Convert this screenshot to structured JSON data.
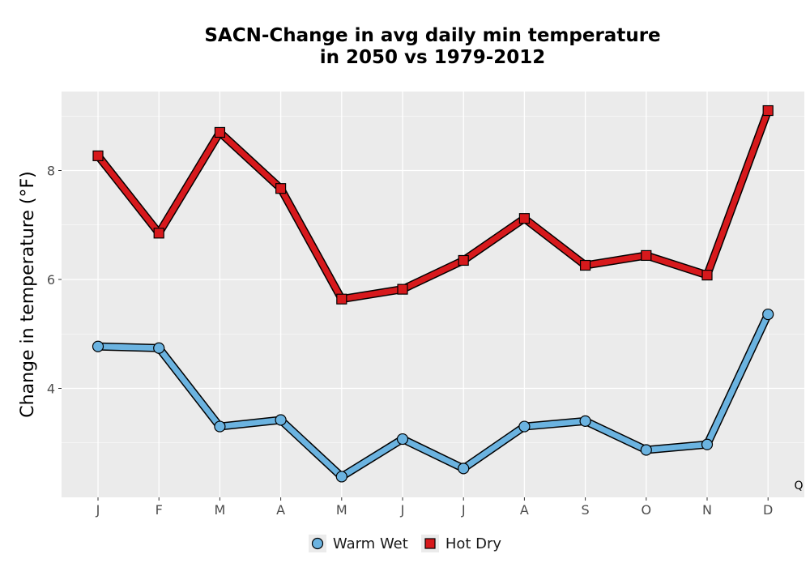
{
  "chart_data": {
    "type": "line",
    "title": [
      "SACN-Change in avg daily min temperature",
      "in 2050 vs 1979-2012"
    ],
    "xlabel": "",
    "ylabel": "Change in temperature (°F)",
    "categories": [
      "J",
      "F",
      "M",
      "A",
      "M",
      "J",
      "J",
      "A",
      "S",
      "O",
      "N",
      "D"
    ],
    "ylim": [
      2.0,
      9.45
    ],
    "yticks": [
      4,
      6,
      8
    ],
    "grid": true,
    "legend_position": "bottom",
    "corner_annotation": "Q",
    "series": [
      {
        "name": "Warm Wet",
        "marker": "circle",
        "color": "#6bb3e0",
        "values": [
          4.77,
          4.74,
          3.3,
          3.42,
          2.38,
          3.07,
          2.53,
          3.3,
          3.4,
          2.87,
          2.97,
          5.36
        ]
      },
      {
        "name": "Hot Dry",
        "marker": "square",
        "color": "#d7191c",
        "values": [
          8.27,
          6.85,
          8.7,
          7.67,
          5.64,
          5.82,
          6.35,
          7.12,
          6.26,
          6.44,
          6.08,
          9.1
        ]
      }
    ]
  }
}
